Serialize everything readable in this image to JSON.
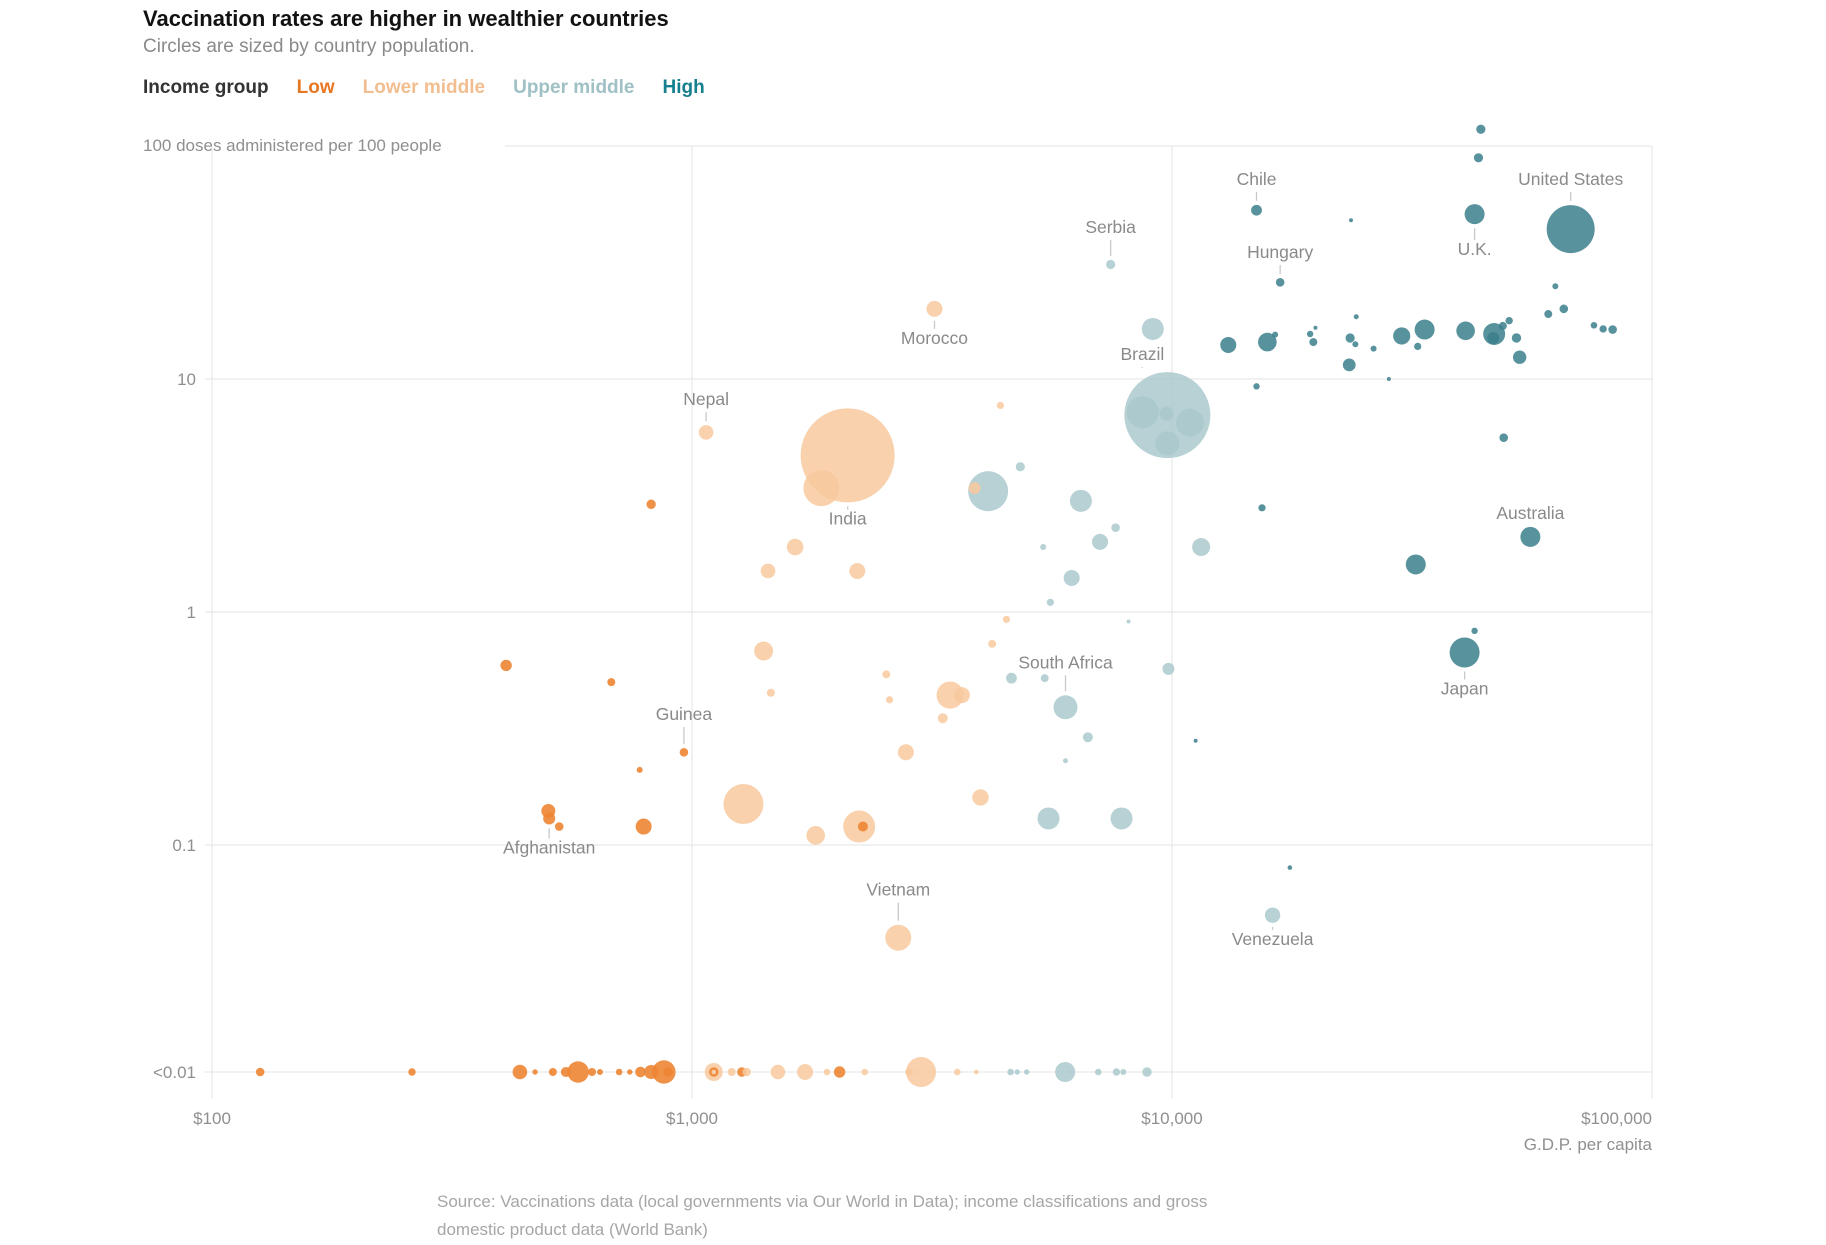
{
  "header": {
    "title": "Vaccination rates are higher in wealthier countries",
    "subtitle": "Circles are sized by country population."
  },
  "legend": {
    "label": "Income group",
    "items": [
      {
        "id": "low",
        "label": "Low",
        "text_color": "#e87722",
        "fill": "#ed8533",
        "opacity": 0.9
      },
      {
        "id": "lower_middle",
        "label": "Lower middle",
        "text_color": "#f2bd8f",
        "fill": "#f8c99e",
        "opacity": 0.85
      },
      {
        "id": "upper_middle",
        "label": "Upper middle",
        "text_color": "#9fc0c5",
        "fill": "#aac9cc",
        "opacity": 0.85
      },
      {
        "id": "high",
        "label": "High",
        "text_color": "#17808f",
        "fill": "#3b7f8c",
        "opacity": 0.85
      }
    ]
  },
  "source": {
    "line1": "Source: Vaccinations data (local governments via Our World in Data); income classifications and gross",
    "line2": "domestic product data (World Bank)"
  },
  "chart_data": {
    "type": "scatter",
    "title": "Vaccination rates are higher in wealthier countries",
    "size_encoding": "country population",
    "x_axis": {
      "label": "G.D.P. per capita",
      "scale": "log",
      "range": [
        100,
        100000
      ],
      "ticks": [
        {
          "value": 100,
          "label": "$100"
        },
        {
          "value": 1000,
          "label": "$1,000"
        },
        {
          "value": 10000,
          "label": "$10,000"
        },
        {
          "value": 100000,
          "label": "$100,000"
        }
      ]
    },
    "y_axis": {
      "label": "100 doses administered per 100 people",
      "scale": "log",
      "ticks": [
        {
          "value": 100,
          "label": "100"
        },
        {
          "value": 10,
          "label": "10"
        },
        {
          "value": 1,
          "label": "1"
        },
        {
          "value": 0.1,
          "label": "0.1"
        },
        {
          "value": "<0.01",
          "label": "<0.01"
        }
      ],
      "grid": true
    },
    "points": [
      {
        "g": 44000,
        "d": 118,
        "r": 4.6,
        "c": "high"
      },
      {
        "g": 43500,
        "d": 89,
        "r": 4.6,
        "c": "high"
      },
      {
        "g": 15000,
        "d": 53,
        "r": 5.4,
        "c": "high",
        "l": "Chile",
        "side": "above"
      },
      {
        "g": 42700,
        "d": 51,
        "r": 10,
        "c": "high",
        "l": "U.K.",
        "side": "below",
        "ldy": 9
      },
      {
        "g": 67700,
        "d": 44,
        "r": 24,
        "c": "high",
        "l": "United States",
        "side": "above"
      },
      {
        "g": 23600,
        "d": 48,
        "r": 2,
        "c": "high"
      },
      {
        "g": 16800,
        "d": 26,
        "r": 4.3,
        "c": "high",
        "l": "Hungary",
        "side": "above"
      },
      {
        "g": 62900,
        "d": 25,
        "r": 3,
        "c": "high"
      },
      {
        "g": 65500,
        "d": 20,
        "r": 4.3,
        "c": "high"
      },
      {
        "g": 60800,
        "d": 19,
        "r": 4,
        "c": "high"
      },
      {
        "g": 75700,
        "d": 17,
        "r": 3.3,
        "c": "high"
      },
      {
        "g": 79100,
        "d": 16.4,
        "r": 3.7,
        "c": "high"
      },
      {
        "g": 82800,
        "d": 16.3,
        "r": 4.3,
        "c": "high"
      },
      {
        "g": 33600,
        "d": 16.3,
        "r": 10,
        "c": "high"
      },
      {
        "g": 40900,
        "d": 16.1,
        "r": 9.3,
        "c": "high"
      },
      {
        "g": 46900,
        "d": 15.6,
        "r": 11,
        "c": "high"
      },
      {
        "g": 46700,
        "d": 15,
        "r": 6,
        "c": "high"
      },
      {
        "g": 48900,
        "d": 16.9,
        "r": 4,
        "c": "high"
      },
      {
        "g": 50400,
        "d": 17.8,
        "r": 3.7,
        "c": "high"
      },
      {
        "g": 52200,
        "d": 15,
        "r": 4.7,
        "c": "high"
      },
      {
        "g": 53000,
        "d": 12.4,
        "r": 6.7,
        "c": "high"
      },
      {
        "g": 30100,
        "d": 15.3,
        "r": 8.6,
        "c": "high"
      },
      {
        "g": 32500,
        "d": 13.8,
        "r": 3.6,
        "c": "high"
      },
      {
        "g": 26300,
        "d": 13.5,
        "r": 3,
        "c": "high"
      },
      {
        "g": 24100,
        "d": 14.1,
        "r": 3,
        "c": "high"
      },
      {
        "g": 23500,
        "d": 15,
        "r": 4.6,
        "c": "high"
      },
      {
        "g": 19700,
        "d": 14.4,
        "r": 4,
        "c": "high"
      },
      {
        "g": 19900,
        "d": 16.6,
        "r": 2,
        "c": "high"
      },
      {
        "g": 19400,
        "d": 15.6,
        "r": 3.2,
        "c": "high"
      },
      {
        "g": 16400,
        "d": 15.5,
        "r": 3,
        "c": "high"
      },
      {
        "g": 15800,
        "d": 14.4,
        "r": 9.3,
        "c": "high"
      },
      {
        "g": 13100,
        "d": 14,
        "r": 8,
        "c": "high"
      },
      {
        "g": 24200,
        "d": 18.5,
        "r": 2.5,
        "c": "high"
      },
      {
        "g": 23400,
        "d": 11.5,
        "r": 6.4,
        "c": "high"
      },
      {
        "g": 28300,
        "d": 10,
        "r": 2,
        "c": "high"
      },
      {
        "g": 15000,
        "d": 9.3,
        "r": 3.2,
        "c": "high"
      },
      {
        "g": 49100,
        "d": 5.6,
        "r": 4.3,
        "c": "high"
      },
      {
        "g": 15400,
        "d": 2.8,
        "r": 3.6,
        "c": "high"
      },
      {
        "g": 55800,
        "d": 2.1,
        "r": 10,
        "c": "high",
        "l": "Australia",
        "side": "above",
        "ldy": 12
      },
      {
        "g": 32200,
        "d": 1.6,
        "r": 10,
        "c": "high"
      },
      {
        "g": 40700,
        "d": 0.67,
        "r": 15,
        "c": "high",
        "l": "Japan",
        "side": "below",
        "ldy": 5
      },
      {
        "g": 42700,
        "d": 0.83,
        "r": 3.2,
        "c": "high"
      },
      {
        "g": 17600,
        "d": 0.08,
        "r": 2.3,
        "c": "high"
      },
      {
        "g": 11200,
        "d": 0.28,
        "r": 2,
        "c": "high"
      },
      {
        "g": 7450,
        "d": 31,
        "r": 4.6,
        "c": "upper_middle",
        "l": "Serbia",
        "side": "above",
        "ldy": -7
      },
      {
        "g": 9120,
        "d": 16.4,
        "r": 11,
        "c": "upper_middle"
      },
      {
        "g": 9780,
        "d": 7,
        "r": 43,
        "c": "upper_middle",
        "l": "Brazil",
        "side": "above",
        "ldx": -25,
        "ldy": 8
      },
      {
        "g": 8690,
        "d": 7.2,
        "r": 16,
        "c": "upper_middle"
      },
      {
        "g": 9740,
        "d": 7.1,
        "r": 7,
        "c": "upper_middle"
      },
      {
        "g": 9780,
        "d": 5.3,
        "r": 12,
        "c": "upper_middle"
      },
      {
        "g": 10900,
        "d": 6.5,
        "r": 14,
        "c": "upper_middle"
      },
      {
        "g": 11500,
        "d": 1.9,
        "r": 9,
        "c": "upper_middle"
      },
      {
        "g": 4830,
        "d": 4.2,
        "r": 4.6,
        "c": "upper_middle"
      },
      {
        "g": 4140,
        "d": 3.3,
        "r": 20,
        "c": "upper_middle"
      },
      {
        "g": 6460,
        "d": 3.0,
        "r": 11,
        "c": "upper_middle"
      },
      {
        "g": 7630,
        "d": 2.3,
        "r": 4.3,
        "c": "upper_middle"
      },
      {
        "g": 7080,
        "d": 2.0,
        "r": 8,
        "c": "upper_middle"
      },
      {
        "g": 5390,
        "d": 1.9,
        "r": 3,
        "c": "upper_middle"
      },
      {
        "g": 5580,
        "d": 1.1,
        "r": 3.6,
        "c": "upper_middle"
      },
      {
        "g": 6180,
        "d": 1.4,
        "r": 8,
        "c": "upper_middle"
      },
      {
        "g": 8120,
        "d": 0.91,
        "r": 2,
        "c": "upper_middle"
      },
      {
        "g": 6000,
        "d": 0.39,
        "r": 12,
        "c": "upper_middle",
        "l": "South Africa",
        "side": "above",
        "ldy": -7
      },
      {
        "g": 4630,
        "d": 0.52,
        "r": 5.4,
        "c": "upper_middle"
      },
      {
        "g": 5430,
        "d": 0.52,
        "r": 4,
        "c": "upper_middle"
      },
      {
        "g": 9830,
        "d": 0.57,
        "r": 6,
        "c": "upper_middle"
      },
      {
        "g": 6680,
        "d": 0.29,
        "r": 5,
        "c": "upper_middle"
      },
      {
        "g": 6000,
        "d": 0.23,
        "r": 2.5,
        "c": "upper_middle"
      },
      {
        "g": 5530,
        "d": 0.13,
        "r": 11,
        "c": "upper_middle"
      },
      {
        "g": 7850,
        "d": 0.13,
        "r": 11,
        "c": "upper_middle"
      },
      {
        "g": 16200,
        "d": 0.05,
        "r": 7.7,
        "c": "upper_middle",
        "l": "Venezuela",
        "side": "below"
      },
      {
        "g": 3200,
        "d": 20,
        "r": 8,
        "c": "lower_middle",
        "l": "Morocco",
        "side": "below",
        "ldy": 5
      },
      {
        "g": 1070,
        "d": 5.9,
        "r": 7.3,
        "c": "lower_middle",
        "l": "Nepal",
        "side": "above"
      },
      {
        "g": 2110,
        "d": 4.7,
        "r": 47,
        "c": "lower_middle",
        "l": "India",
        "side": "below"
      },
      {
        "g": 1860,
        "d": 3.4,
        "r": 18,
        "c": "lower_middle"
      },
      {
        "g": 4390,
        "d": 7.7,
        "r": 3.6,
        "c": "lower_middle"
      },
      {
        "g": 1640,
        "d": 1.9,
        "r": 8.3,
        "c": "lower_middle"
      },
      {
        "g": 1440,
        "d": 1.5,
        "r": 7.3,
        "c": "lower_middle"
      },
      {
        "g": 2210,
        "d": 1.5,
        "r": 8,
        "c": "lower_middle"
      },
      {
        "g": 4520,
        "d": 0.93,
        "r": 3.6,
        "c": "lower_middle"
      },
      {
        "g": 4220,
        "d": 0.73,
        "r": 4,
        "c": "lower_middle"
      },
      {
        "g": 1410,
        "d": 0.68,
        "r": 9.5,
        "c": "lower_middle"
      },
      {
        "g": 1460,
        "d": 0.45,
        "r": 4,
        "c": "lower_middle"
      },
      {
        "g": 2540,
        "d": 0.54,
        "r": 4,
        "c": "lower_middle"
      },
      {
        "g": 2580,
        "d": 0.42,
        "r": 3.6,
        "c": "lower_middle"
      },
      {
        "g": 3450,
        "d": 0.44,
        "r": 13.6,
        "c": "lower_middle"
      },
      {
        "g": 3650,
        "d": 0.44,
        "r": 8,
        "c": "lower_middle"
      },
      {
        "g": 3330,
        "d": 0.35,
        "r": 5,
        "c": "lower_middle"
      },
      {
        "g": 2790,
        "d": 0.25,
        "r": 8,
        "c": "lower_middle"
      },
      {
        "g": 1280,
        "d": 0.15,
        "r": 20,
        "c": "lower_middle"
      },
      {
        "g": 1810,
        "d": 0.11,
        "r": 9.3,
        "c": "lower_middle"
      },
      {
        "g": 2230,
        "d": 0.12,
        "r": 16,
        "c": "lower_middle"
      },
      {
        "g": 3990,
        "d": 0.16,
        "r": 8.2,
        "c": "lower_middle"
      },
      {
        "g": 2690,
        "d": 0.04,
        "r": 13,
        "c": "lower_middle",
        "l": "Vietnam",
        "side": "above",
        "ldy": -9
      },
      {
        "g": 3880,
        "d": 3.4,
        "r": 6,
        "c": "lower_middle"
      },
      {
        "g": 822,
        "d": 2.9,
        "r": 4.7,
        "c": "low"
      },
      {
        "g": 410,
        "d": 0.59,
        "r": 5.7,
        "c": "low"
      },
      {
        "g": 679,
        "d": 0.5,
        "r": 4,
        "c": "low"
      },
      {
        "g": 962,
        "d": 0.25,
        "r": 4.3,
        "c": "low",
        "l": "Guinea",
        "side": "above",
        "ldy": -8
      },
      {
        "g": 778,
        "d": 0.21,
        "r": 3,
        "c": "low"
      },
      {
        "g": 502,
        "d": 0.14,
        "r": 7,
        "c": "low"
      },
      {
        "g": 504,
        "d": 0.13,
        "r": 6,
        "c": "low",
        "l": "Afghanistan",
        "side": "below",
        "ldy": 7
      },
      {
        "g": 529,
        "d": 0.12,
        "r": 4.3,
        "c": "low"
      },
      {
        "g": 793,
        "d": 0.12,
        "r": 8,
        "c": "low"
      },
      {
        "g": 2270,
        "d": 0.12,
        "r": 5,
        "c": "low"
      },
      {
        "g": 126,
        "d": "<0.01",
        "r": 4.3,
        "c": "low"
      },
      {
        "g": 261,
        "d": "<0.01",
        "r": 3.7,
        "c": "low"
      },
      {
        "g": 438,
        "d": "<0.01",
        "r": 7.3,
        "c": "low"
      },
      {
        "g": 471,
        "d": "<0.01",
        "r": 2.7,
        "c": "low"
      },
      {
        "g": 513,
        "d": "<0.01",
        "r": 4,
        "c": "low"
      },
      {
        "g": 546,
        "d": "<0.01",
        "r": 5,
        "c": "low"
      },
      {
        "g": 579,
        "d": "<0.01",
        "r": 10.7,
        "c": "low"
      },
      {
        "g": 619,
        "d": "<0.01",
        "r": 4,
        "c": "low"
      },
      {
        "g": 643,
        "d": "<0.01",
        "r": 3,
        "c": "low"
      },
      {
        "g": 705,
        "d": "<0.01",
        "r": 3.3,
        "c": "low"
      },
      {
        "g": 742,
        "d": "<0.01",
        "r": 2.7,
        "c": "low"
      },
      {
        "g": 781,
        "d": "<0.01",
        "r": 5.3,
        "c": "low"
      },
      {
        "g": 822,
        "d": "<0.01",
        "r": 7,
        "c": "low"
      },
      {
        "g": 874,
        "d": "<0.01",
        "r": 11.7,
        "c": "low"
      },
      {
        "g": 892,
        "d": "<0.01",
        "r": 4.7,
        "c": "low"
      },
      {
        "g": 1110,
        "d": "<0.01",
        "r": 9,
        "c": "lower_middle"
      },
      {
        "g": 1110,
        "d": "<0.01",
        "r": 3.5,
        "c": "low",
        "ring": true
      },
      {
        "g": 1210,
        "d": "<0.01",
        "r": 4,
        "c": "lower_middle"
      },
      {
        "g": 1270,
        "d": "<0.01",
        "r": 4.7,
        "c": "low"
      },
      {
        "g": 1300,
        "d": "<0.01",
        "r": 4.3,
        "c": "lower_middle"
      },
      {
        "g": 1510,
        "d": "<0.01",
        "r": 7.3,
        "c": "lower_middle"
      },
      {
        "g": 1720,
        "d": "<0.01",
        "r": 8,
        "c": "lower_middle"
      },
      {
        "g": 1910,
        "d": "<0.01",
        "r": 3.3,
        "c": "lower_middle"
      },
      {
        "g": 2030,
        "d": "<0.01",
        "r": 5.7,
        "c": "low"
      },
      {
        "g": 2290,
        "d": "<0.01",
        "r": 3.3,
        "c": "lower_middle"
      },
      {
        "g": 2830,
        "d": "<0.01",
        "r": 3.7,
        "c": "lower_middle"
      },
      {
        "g": 3000,
        "d": "<0.01",
        "r": 15,
        "c": "lower_middle"
      },
      {
        "g": 3570,
        "d": "<0.01",
        "r": 3.3,
        "c": "lower_middle"
      },
      {
        "g": 3910,
        "d": "<0.01",
        "r": 2.3,
        "c": "lower_middle"
      },
      {
        "g": 4610,
        "d": "<0.01",
        "r": 3.3,
        "c": "upper_middle"
      },
      {
        "g": 4760,
        "d": "<0.01",
        "r": 2.7,
        "c": "upper_middle"
      },
      {
        "g": 4980,
        "d": "<0.01",
        "r": 2.7,
        "c": "upper_middle"
      },
      {
        "g": 5990,
        "d": "<0.01",
        "r": 10,
        "c": "upper_middle"
      },
      {
        "g": 7020,
        "d": "<0.01",
        "r": 3.3,
        "c": "upper_middle"
      },
      {
        "g": 7660,
        "d": "<0.01",
        "r": 3.7,
        "c": "upper_middle"
      },
      {
        "g": 7920,
        "d": "<0.01",
        "r": 3,
        "c": "upper_middle"
      },
      {
        "g": 8870,
        "d": "<0.01",
        "r": 4.7,
        "c": "upper_middle"
      }
    ]
  }
}
